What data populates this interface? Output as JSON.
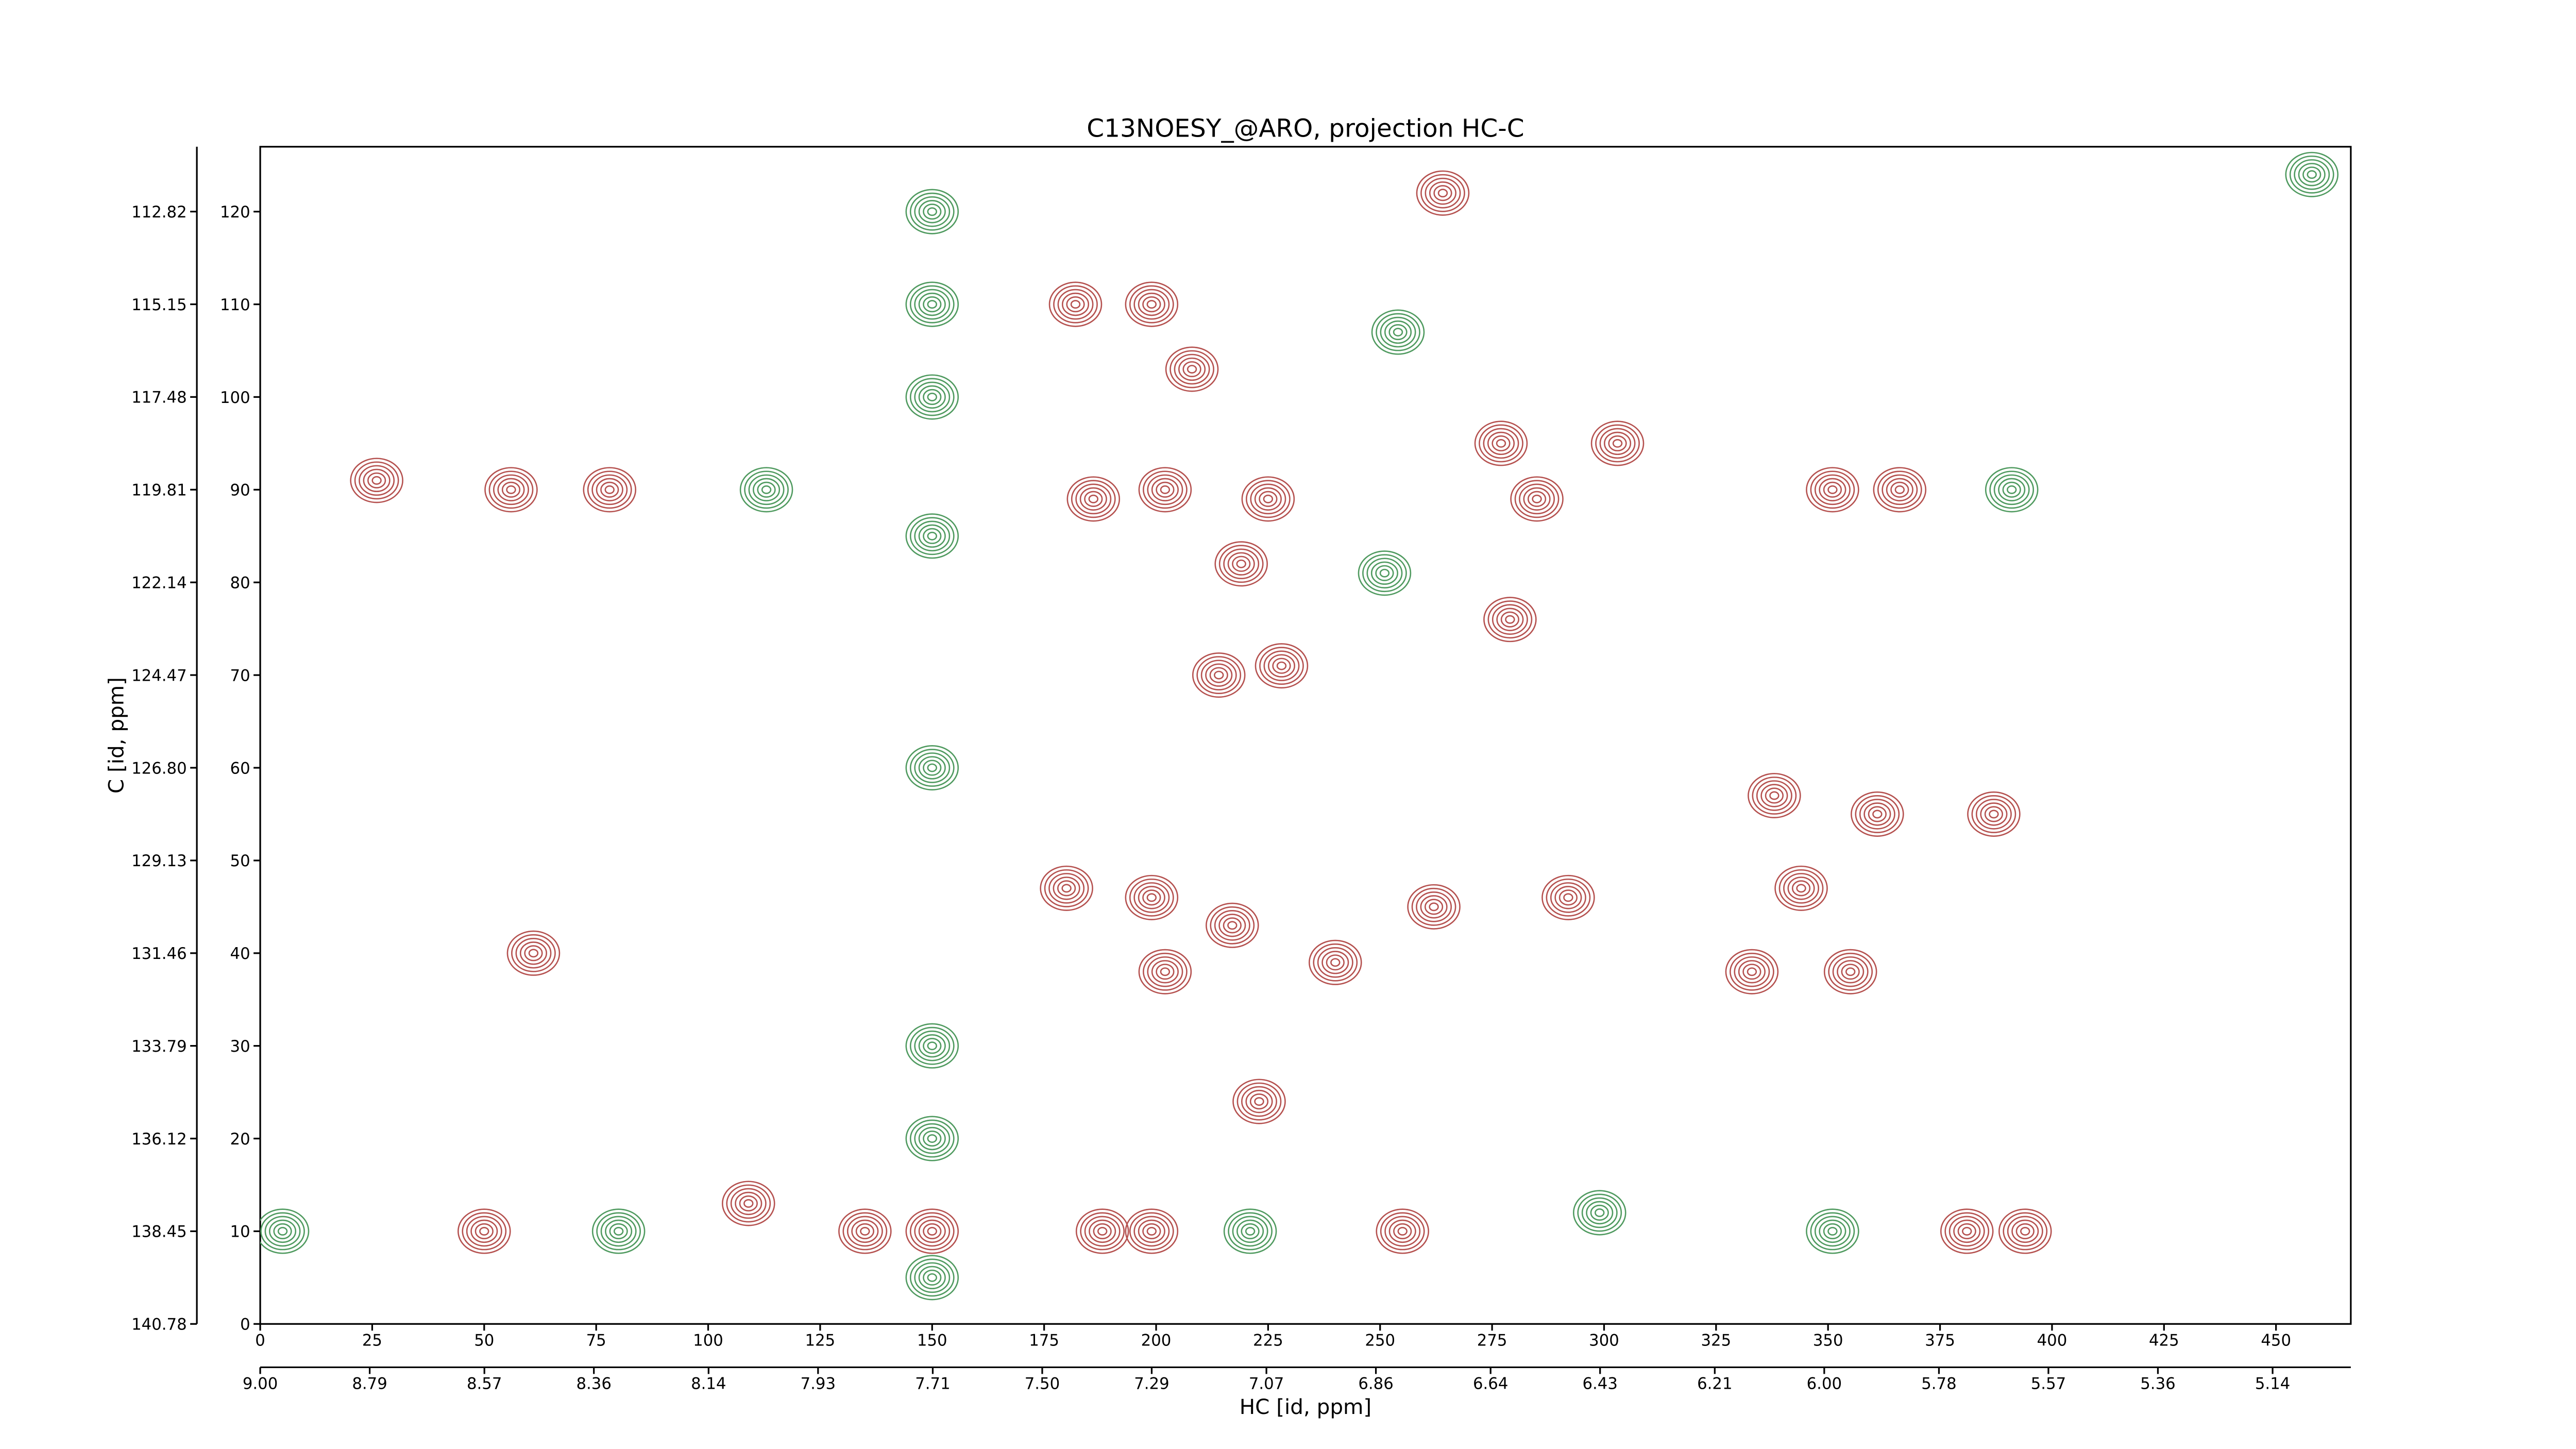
{
  "chart_data": {
    "type": "contour",
    "title": "C13NOESY_@ARO, projection HC-C",
    "xlabel": "HC [id, ppm]",
    "ylabel": "C [id, ppm]",
    "xlim": [
      0,
      466.7
    ],
    "xticks": [
      0,
      25,
      50,
      75,
      100,
      125,
      150,
      175,
      200,
      225,
      250,
      275,
      300,
      325,
      350,
      375,
      400,
      425,
      450
    ],
    "x2lim": [
      9.0,
      4.99
    ],
    "x2ticks": [
      {
        "value": 9.0,
        "label": "9.00"
      },
      8.79,
      8.57,
      8.36,
      8.14,
      7.93,
      7.71,
      {
        "value": 7.5,
        "label": "7.50"
      },
      7.29,
      7.07,
      6.86,
      6.64,
      6.43,
      6.21,
      {
        "value": 6.0,
        "label": "6.00"
      },
      5.78,
      5.57,
      5.36,
      5.14
    ],
    "ylim": [
      0,
      127
    ],
    "yticks": [
      0,
      10,
      20,
      30,
      40,
      50,
      60,
      70,
      80,
      90,
      100,
      110,
      120
    ],
    "y2lim": [
      140.78,
      111.19
    ],
    "y2ticks": [
      140.78,
      138.45,
      136.12,
      133.79,
      131.46,
      129.13,
      {
        "value": 126.8,
        "label": "126.80"
      },
      124.47,
      122.14,
      119.81,
      117.48,
      115.15,
      112.82
    ],
    "series": [
      {
        "color": "#b5514f",
        "x": [
          182,
          199,
          208,
          186,
          202,
          225,
          219,
          228,
          214,
          277,
          303,
          285,
          279,
          264,
          180,
          199,
          202,
          217,
          240,
          262,
          292,
          223,
          338,
          361,
          344,
          333,
          355,
          387,
          50,
          109,
          135,
          150,
          188,
          199,
          255,
          381,
          394,
          26,
          56,
          78,
          351,
          366,
          61
        ],
        "y": [
          110,
          110,
          103,
          89,
          90,
          89,
          82,
          71,
          70,
          95,
          95,
          89,
          76,
          122,
          47,
          46,
          38,
          43,
          39,
          45,
          46,
          24,
          57,
          55,
          47,
          38,
          38,
          55,
          10,
          13,
          10,
          10,
          10,
          10,
          10,
          10,
          10,
          91,
          90,
          90,
          90,
          90,
          40
        ]
      },
      {
        "color": "#4f9a5f",
        "x": [
          113,
          391,
          80,
          5,
          221,
          299,
          351,
          150,
          150,
          150,
          150,
          150,
          150,
          150,
          150,
          254,
          251,
          458
        ],
        "y": [
          90,
          90,
          10,
          10,
          10,
          12,
          10,
          120,
          110,
          100,
          85,
          60,
          30,
          20,
          5,
          107,
          81,
          124
        ]
      }
    ]
  }
}
